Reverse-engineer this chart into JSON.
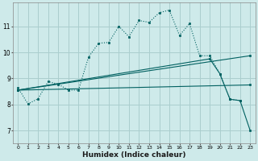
{
  "xlabel": "Humidex (Indice chaleur)",
  "bg_color": "#ceeaea",
  "grid_color": "#aacece",
  "line_color": "#006060",
  "xlim": [
    -0.5,
    23.5
  ],
  "ylim": [
    6.5,
    11.9
  ],
  "xticks": [
    0,
    1,
    2,
    3,
    4,
    5,
    6,
    7,
    8,
    9,
    10,
    11,
    12,
    13,
    14,
    15,
    16,
    17,
    18,
    19,
    20,
    21,
    22,
    23
  ],
  "yticks": [
    7,
    8,
    9,
    10,
    11
  ],
  "curve1": {
    "x": [
      0,
      1,
      2,
      3,
      4,
      5,
      6,
      7,
      8,
      9,
      10,
      11,
      12,
      13,
      14,
      15,
      16,
      17,
      18,
      19,
      20,
      21,
      22
    ],
    "y": [
      8.65,
      8.02,
      8.22,
      8.88,
      8.78,
      8.55,
      8.55,
      9.82,
      10.35,
      10.38,
      11.0,
      10.6,
      11.22,
      11.15,
      11.52,
      11.62,
      10.65,
      11.1,
      9.87,
      9.87,
      9.18,
      8.2,
      8.15
    ]
  },
  "line1": {
    "x": [
      0,
      19,
      20,
      21,
      22,
      23
    ],
    "y": [
      8.55,
      9.75,
      9.18,
      8.2,
      8.15,
      7.0
    ]
  },
  "line2_x": [
    0,
    23
  ],
  "line2_y": [
    8.55,
    9.87
  ],
  "line3_x": [
    0,
    23
  ],
  "line3_y": [
    8.55,
    8.75
  ]
}
